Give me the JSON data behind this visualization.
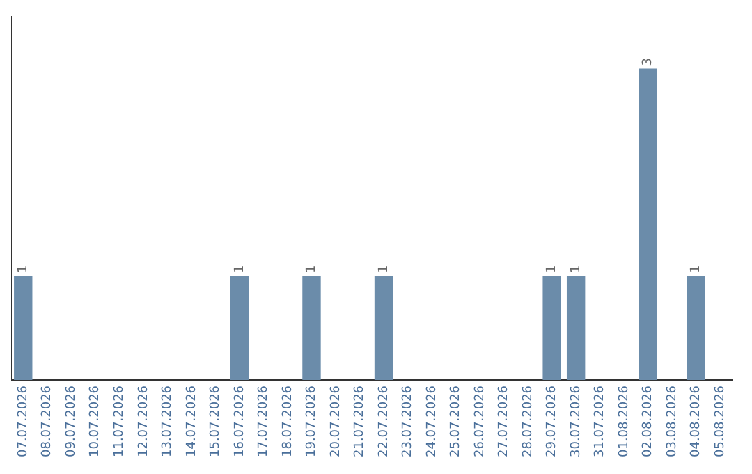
{
  "chart_data": {
    "type": "bar",
    "categories": [
      "07.07.2026",
      "08.07.2026",
      "09.07.2026",
      "10.07.2026",
      "11.07.2026",
      "12.07.2026",
      "13.07.2026",
      "14.07.2026",
      "15.07.2026",
      "16.07.2026",
      "17.07.2026",
      "18.07.2026",
      "19.07.2026",
      "20.07.2026",
      "21.07.2026",
      "22.07.2026",
      "23.07.2026",
      "24.07.2026",
      "25.07.2026",
      "26.07.2026",
      "27.07.2026",
      "28.07.2026",
      "29.07.2026",
      "30.07.2026",
      "31.07.2026",
      "01.08.2026",
      "02.08.2026",
      "03.08.2026",
      "04.08.2026",
      "05.08.2026"
    ],
    "values": [
      1,
      0,
      0,
      0,
      0,
      0,
      0,
      0,
      0,
      1,
      0,
      0,
      1,
      0,
      0,
      1,
      0,
      0,
      0,
      0,
      0,
      0,
      1,
      1,
      0,
      0,
      3,
      0,
      1,
      0
    ],
    "value_labels": [
      "1",
      null,
      null,
      null,
      null,
      null,
      null,
      null,
      null,
      "1",
      null,
      null,
      "1",
      null,
      null,
      "1",
      null,
      null,
      null,
      null,
      null,
      null,
      "1",
      "1",
      null,
      null,
      "3",
      null,
      "1",
      null
    ],
    "color": "#6b8caa",
    "tick_labels": "x",
    "grid": false,
    "legend": false
  }
}
